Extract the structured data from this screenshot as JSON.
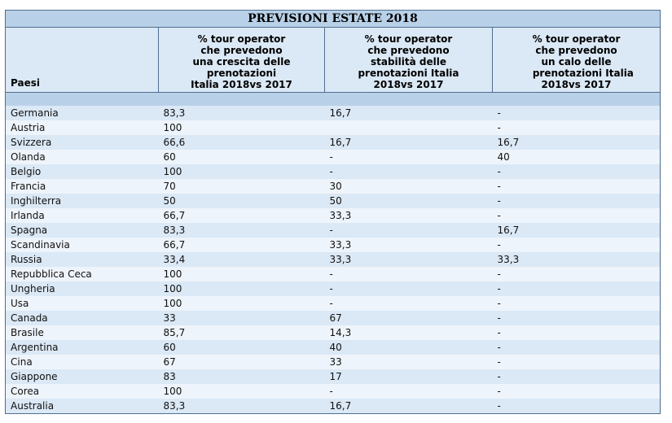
{
  "table": {
    "title": "PREVISIONI ESTATE 2018",
    "header": {
      "country": "Paesi",
      "growth": [
        "% tour operator",
        "che prevedono",
        "una crescita delle",
        "prenotazioni",
        "Italia 2018vs 2017"
      ],
      "stability": [
        "% tour operator",
        "che prevedono",
        "stabilità delle",
        "prenotazioni Italia",
        "2018vs 2017"
      ],
      "decline": [
        "% tour operator",
        "che prevedono",
        "un calo delle",
        "    prenotazioni Italia",
        "2018vs 2017"
      ]
    },
    "rows": [
      {
        "country": "Germania",
        "growth": "83,3",
        "stability": "16,7",
        "decline": "-"
      },
      {
        "country": "Austria",
        "growth": "100",
        "stability": "",
        "decline": "-"
      },
      {
        "country": "Svizzera",
        "growth": "66,6",
        "stability": "16,7",
        "decline": "16,7"
      },
      {
        "country": "Olanda",
        "growth": "60",
        "stability": "-",
        "decline": "40"
      },
      {
        "country": "Belgio",
        "growth": "100",
        "stability": "-",
        "decline": "-"
      },
      {
        "country": "Francia",
        "growth": "70",
        "stability": "30",
        "decline": "-"
      },
      {
        "country": "Inghilterra",
        "growth": "50",
        "stability": "50",
        "decline": "-"
      },
      {
        "country": "Irlanda",
        "growth": "66,7",
        "stability": "33,3",
        "decline": "-"
      },
      {
        "country": "Spagna",
        "growth": "83,3",
        "stability": "-",
        "decline": "16,7"
      },
      {
        "country": "Scandinavia",
        "growth": "66,7",
        "stability": "33,3",
        "decline": "-"
      },
      {
        "country": "Russia",
        "growth": "33,4",
        "stability": "33,3",
        "decline": "33,3"
      },
      {
        "country": "Repubblica Ceca",
        "growth": "100",
        "stability": "-",
        "decline": "-"
      },
      {
        "country": "Ungheria",
        "growth": "100",
        "stability": "-",
        "decline": "-"
      },
      {
        "country": "Usa",
        "growth": "100",
        "stability": "-",
        "decline": "-"
      },
      {
        "country": "Canada",
        "growth": "33",
        "stability": "67",
        "decline": "-"
      },
      {
        "country": "Brasile",
        "growth": "85,7",
        "stability": "14,3",
        "decline": "-"
      },
      {
        "country": "Argentina",
        "growth": "60",
        "stability": "40",
        "decline": "-"
      },
      {
        "country": "Cina",
        "growth": "67",
        "stability": "33",
        "decline": "-"
      },
      {
        "country": "Giappone",
        "growth": "83",
        "stability": "17",
        "decline": "-"
      },
      {
        "country": "Corea",
        "growth": "100",
        "stability": "-",
        "decline": "-"
      },
      {
        "country": "Australia",
        "growth": "83,3",
        "stability": "16,7",
        "decline": "-"
      }
    ]
  }
}
